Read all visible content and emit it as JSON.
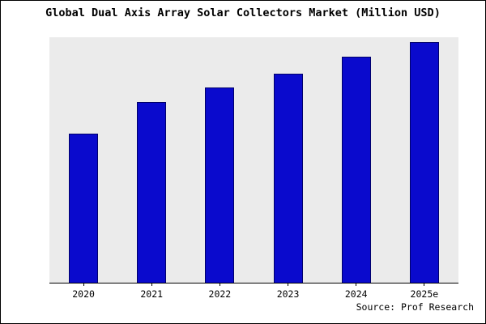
{
  "title": "Global Dual Axis Array Solar Collectors Market (Million USD)",
  "source": "Source: Prof Research",
  "chart_data": {
    "type": "bar",
    "title": "Global Dual Axis Array Solar Collectors Market (Million USD)",
    "categories": [
      "2020",
      "2021",
      "2022",
      "2023",
      "2024",
      "2025e"
    ],
    "values": [
      62,
      75,
      81,
      87,
      94,
      100
    ],
    "xlabel": "",
    "ylabel": "",
    "ylim": [
      0,
      102
    ],
    "grid": false,
    "legend": false,
    "y_axis_ticks_visible": false,
    "bar_color": "#0a0acd",
    "bar_border_color": "#00006b",
    "plot_bg": "#ebebeb",
    "source_note": "Source: Prof Research"
  }
}
